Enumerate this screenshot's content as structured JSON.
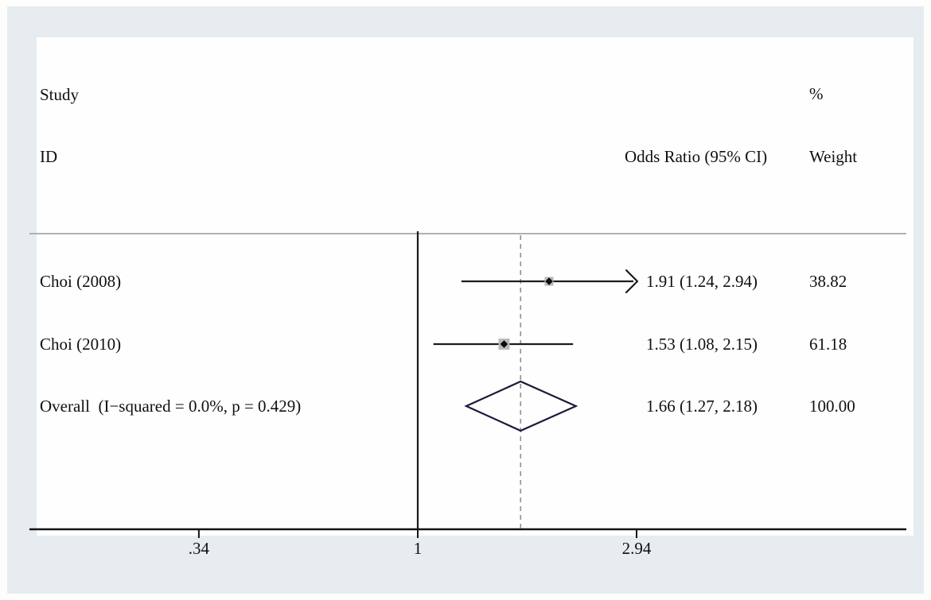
{
  "chart_data": {
    "type": "forest",
    "title": "",
    "scale": "log",
    "xlim": [
      0.34,
      2.94
    ],
    "columns": {
      "study_header_line1": "Study",
      "study_header_line2": "ID",
      "or_header": "Odds Ratio (95% CI)",
      "weight_header_line1": "%",
      "weight_header_line2": "Weight"
    },
    "x_ticks": [
      {
        "label": ".34",
        "value": 0.34
      },
      {
        "label": "1",
        "value": 1
      },
      {
        "label": "2.94",
        "value": 2.94
      }
    ],
    "ref_line_value": 1,
    "overall_dashed_line_value": 1.66,
    "rows": [
      {
        "label": "Choi (2008)",
        "or": 1.91,
        "ci_low": 1.24,
        "ci_high": 2.94,
        "or_text": "1.91 (1.24, 2.94)",
        "weight": 38.82,
        "weight_text": "38.82",
        "arrow_right": true
      },
      {
        "label": "Choi (2010)",
        "or": 1.53,
        "ci_low": 1.08,
        "ci_high": 2.15,
        "or_text": "1.53 (1.08, 2.15)",
        "weight": 61.18,
        "weight_text": "61.18",
        "arrow_right": false
      }
    ],
    "overall": {
      "label": "Overall  (I−squared = 0.0%, p = 0.429)",
      "or": 1.66,
      "ci_low": 1.27,
      "ci_high": 2.18,
      "or_text": "1.66 (1.27, 2.18)",
      "weight_text": "100.00"
    }
  },
  "colors": {
    "panel_bg": "#e6ecf0",
    "plot_bg": "#fefefe",
    "text": "#101010",
    "divider": "#b1b1b1",
    "axis": "#141414",
    "ref_line": "#1c1c1c",
    "dashed_line": "#909090",
    "ci_line": "#1c1c1c",
    "marker_box": "#b9b9b9",
    "marker_fill": "#0b0b0b",
    "diamond_stroke": "#1b1b3a"
  }
}
